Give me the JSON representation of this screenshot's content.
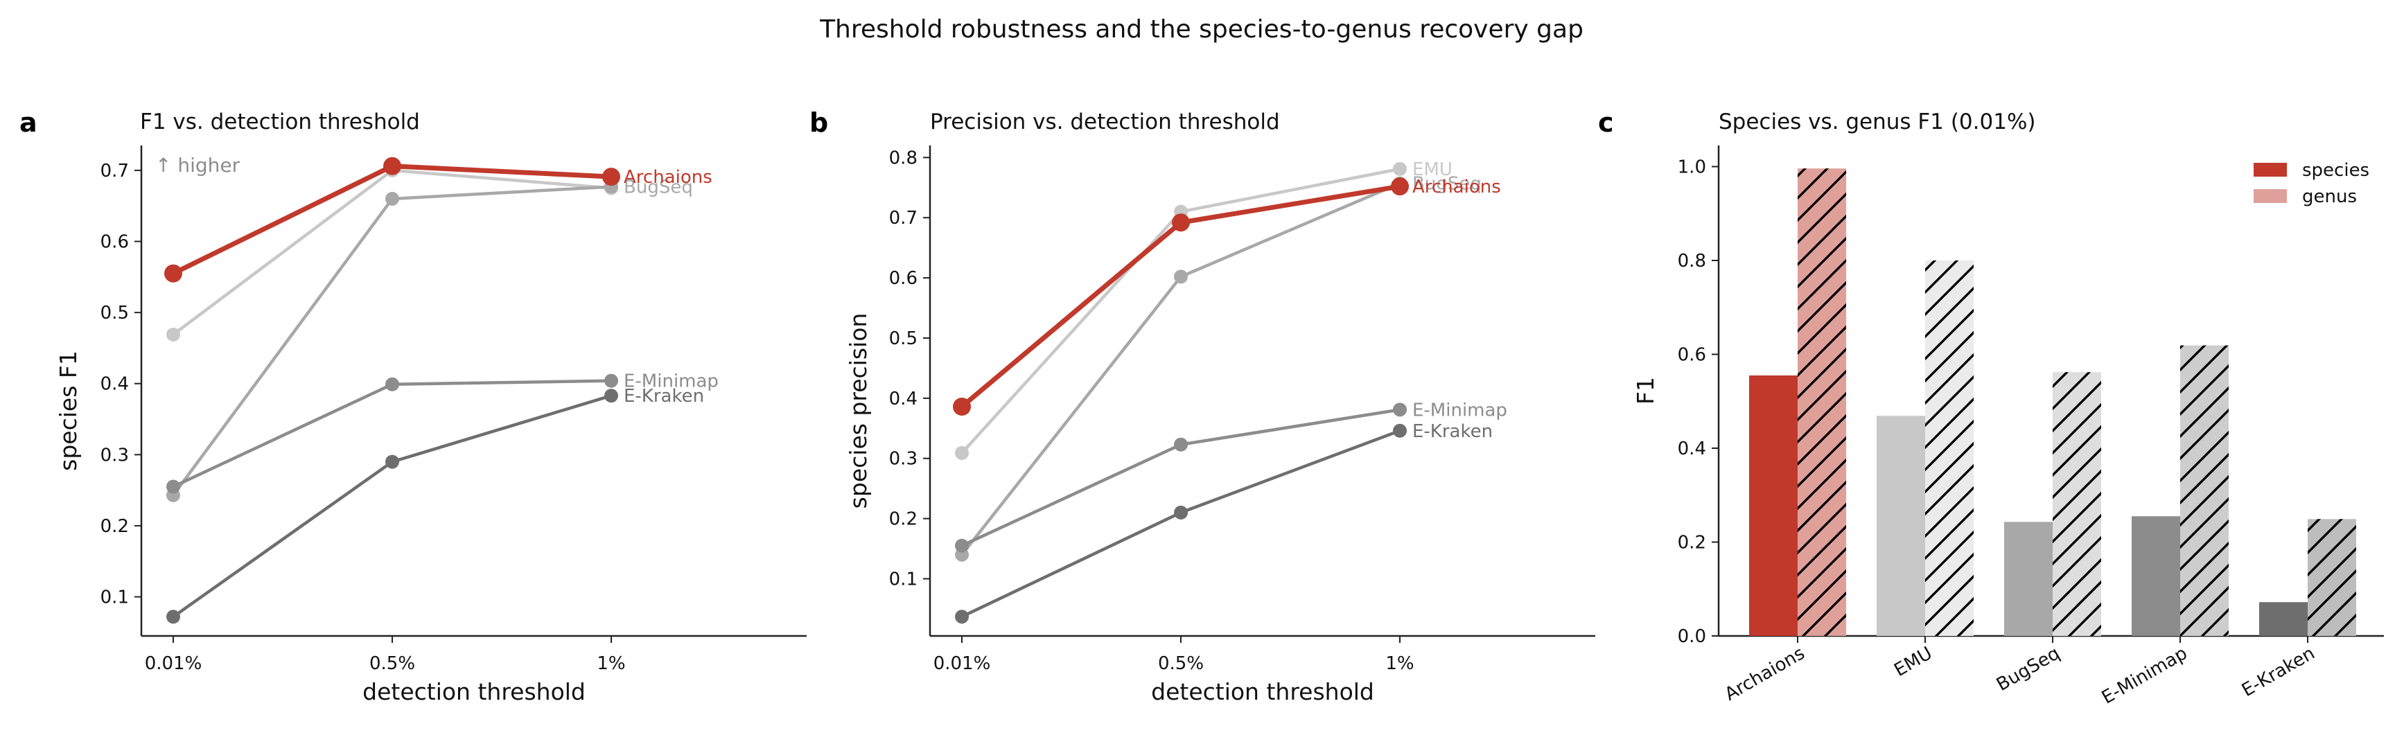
{
  "figure": {
    "suptitle": "Threshold robustness and the species-to-genus recovery gap"
  },
  "colors": {
    "Archaions": "#c0392b",
    "EMU": "#c8c8c8",
    "BugSeq": "#a8a8a8",
    "E-Minimap": "#8c8c8c",
    "E-Kraken": "#6e6e6e",
    "Archaions_genus": "#e0a09a",
    "EMU_genus": "#ebebeb",
    "BugSeq_genus": "#dedede",
    "E-Minimap_genus": "#cdcdcd",
    "E-Kraken_genus": "#bdbdbd"
  },
  "chart_data": [
    {
      "panel": "a",
      "type": "line",
      "title": "F1 vs. detection threshold",
      "xlabel": "detection threshold",
      "ylabel": "species F1",
      "annotation": "↑ higher",
      "categories": [
        "0.01%",
        "0.5%",
        "1%"
      ],
      "yticks": [
        0.1,
        0.2,
        0.3,
        0.4,
        0.5,
        0.6,
        0.7
      ],
      "ylim": [
        0.045,
        0.735
      ],
      "series": [
        {
          "name": "EMU",
          "values": [
            0.469,
            0.7,
            0.675
          ],
          "labeled": false
        },
        {
          "name": "BugSeq",
          "values": [
            0.243,
            0.66,
            0.677
          ],
          "labeled": true
        },
        {
          "name": "E-Minimap",
          "values": [
            0.255,
            0.399,
            0.404
          ],
          "labeled": true
        },
        {
          "name": "E-Kraken",
          "values": [
            0.072,
            0.29,
            0.383
          ],
          "labeled": true
        },
        {
          "name": "Archaions",
          "values": [
            0.555,
            0.706,
            0.691
          ],
          "labeled": true
        }
      ]
    },
    {
      "panel": "b",
      "type": "line",
      "title": "Precision vs. detection threshold",
      "xlabel": "detection threshold",
      "ylabel": "species precision",
      "categories": [
        "0.01%",
        "0.5%",
        "1%"
      ],
      "yticks": [
        0.1,
        0.2,
        0.3,
        0.4,
        0.5,
        0.6,
        0.7,
        0.8
      ],
      "ylim": [
        0.005,
        0.82
      ],
      "series": [
        {
          "name": "EMU",
          "values": [
            0.309,
            0.71,
            0.781
          ],
          "labeled": true
        },
        {
          "name": "BugSeq",
          "values": [
            0.14,
            0.602,
            0.757
          ],
          "labeled": true
        },
        {
          "name": "E-Minimap",
          "values": [
            0.155,
            0.323,
            0.381
          ],
          "labeled": true
        },
        {
          "name": "E-Kraken",
          "values": [
            0.037,
            0.21,
            0.346
          ],
          "labeled": true
        },
        {
          "name": "Archaions",
          "values": [
            0.386,
            0.692,
            0.752
          ],
          "labeled": true
        }
      ]
    },
    {
      "panel": "c",
      "type": "bar",
      "title": "Species vs. genus F1 (0.01%)",
      "ylabel": "F1",
      "categories": [
        "Archaions",
        "EMU",
        "BugSeq",
        "E-Minimap",
        "E-Kraken"
      ],
      "yticks": [
        0.0,
        0.2,
        0.4,
        0.6,
        0.8,
        1.0
      ],
      "ylim": [
        0,
        1.045
      ],
      "legend_position": "top-right",
      "series": [
        {
          "name": "species",
          "values": [
            0.555,
            0.469,
            0.243,
            0.255,
            0.072
          ]
        },
        {
          "name": "genus",
          "values": [
            0.996,
            0.8,
            0.562,
            0.619,
            0.249
          ]
        }
      ]
    }
  ]
}
